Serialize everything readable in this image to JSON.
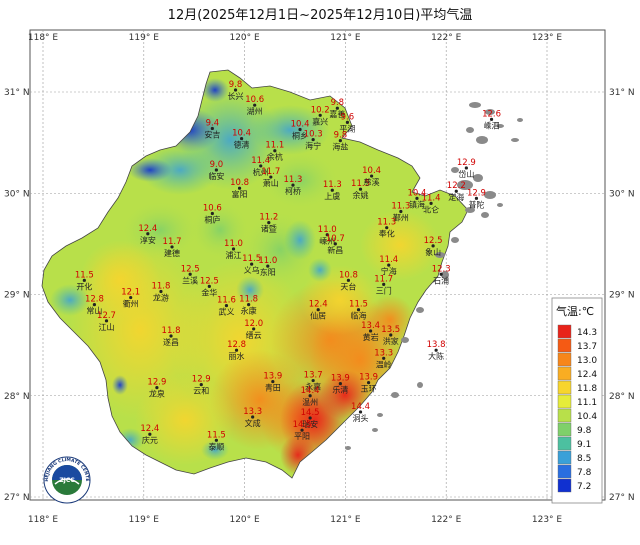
{
  "title": "12月(2025年12月1日~2025年12月10日)平均气温",
  "lon_labels": [
    "118° E",
    "119° E",
    "120° E",
    "121° E",
    "122° E",
    "123° E"
  ],
  "lat_labels": [
    "31° N",
    "30° N",
    "29° N",
    "28° N",
    "27° N"
  ],
  "legend": {
    "title": "气温:℃",
    "values": [
      "14.3",
      "13.7",
      "13.0",
      "12.4",
      "11.8",
      "11.1",
      "10.4",
      "9.8",
      "9.1",
      "8.5",
      "7.8",
      "7.2"
    ],
    "colors": [
      "#e8231a",
      "#f55a14",
      "#f7861a",
      "#f9ad22",
      "#f7d52d",
      "#e6ec3a",
      "#b8e04a",
      "#7fd06a",
      "#4cc0a0",
      "#3aa0d8",
      "#2a6ee0",
      "#1030d0"
    ]
  },
  "logo_text": "ZHEJIANG CLIMATE CENTER",
  "logo_code": "ZJCC",
  "cities": [
    {
      "name": "嵊泗",
      "value": "12.6",
      "lon": 122.45,
      "lat": 30.73
    },
    {
      "name": "岱山",
      "value": "12.9",
      "lon": 122.2,
      "lat": 30.25
    },
    {
      "name": "湖州",
      "value": "10.6",
      "lon": 120.1,
      "lat": 30.87
    },
    {
      "name": "嘉兴",
      "value": "10.2",
      "lon": 120.75,
      "lat": 30.77
    },
    {
      "name": "嘉善",
      "value": "9.8",
      "lon": 120.92,
      "lat": 30.84
    },
    {
      "name": "平湖",
      "value": "9.6",
      "lon": 121.02,
      "lat": 30.7
    },
    {
      "name": "长兴",
      "value": "9.8",
      "lon": 119.91,
      "lat": 31.02
    },
    {
      "name": "安吉",
      "value": "9.4",
      "lon": 119.68,
      "lat": 30.64
    },
    {
      "name": "德清",
      "value": "10.4",
      "lon": 119.97,
      "lat": 30.54
    },
    {
      "name": "桐乡",
      "value": "10.4",
      "lon": 120.55,
      "lat": 30.63
    },
    {
      "name": "海盐",
      "value": "9.8",
      "lon": 120.95,
      "lat": 30.52
    },
    {
      "name": "海宁",
      "value": "10.3",
      "lon": 120.68,
      "lat": 30.53
    },
    {
      "name": "临安",
      "value": "9.0",
      "lon": 119.72,
      "lat": 30.23
    },
    {
      "name": "杭州",
      "value": "11.4",
      "lon": 120.16,
      "lat": 30.27
    },
    {
      "name": "余杭",
      "value": "11.1",
      "lon": 120.3,
      "lat": 30.42
    },
    {
      "name": "萧山",
      "value": "11.7",
      "lon": 120.26,
      "lat": 30.16
    },
    {
      "name": "富阳",
      "value": "10.8",
      "lon": 119.95,
      "lat": 30.05
    },
    {
      "name": "柯桥",
      "value": "11.3",
      "lon": 120.48,
      "lat": 30.08
    },
    {
      "name": "上虞",
      "value": "11.3",
      "lon": 120.87,
      "lat": 30.03
    },
    {
      "name": "余姚",
      "value": "11.5",
      "lon": 121.15,
      "lat": 30.04
    },
    {
      "name": "慈溪",
      "value": "10.4",
      "lon": 121.26,
      "lat": 30.17
    },
    {
      "name": "镇海",
      "value": "10.4",
      "lon": 121.71,
      "lat": 29.95
    },
    {
      "name": "北仑",
      "value": "11.4",
      "lon": 121.85,
      "lat": 29.9
    },
    {
      "name": "定海",
      "value": "12.2",
      "lon": 122.1,
      "lat": 30.02
    },
    {
      "name": "普陀",
      "value": "12.9",
      "lon": 122.3,
      "lat": 29.95
    },
    {
      "name": "鄞州",
      "value": "11.3",
      "lon": 121.55,
      "lat": 29.82
    },
    {
      "name": "奉化",
      "value": "11.3",
      "lon": 121.41,
      "lat": 29.66
    },
    {
      "name": "桐庐",
      "value": "10.6",
      "lon": 119.68,
      "lat": 29.8
    },
    {
      "name": "诸暨",
      "value": "11.2",
      "lon": 120.24,
      "lat": 29.71
    },
    {
      "name": "嵊州",
      "value": "11.0",
      "lon": 120.82,
      "lat": 29.59
    },
    {
      "name": "新昌",
      "value": "10.7",
      "lon": 120.9,
      "lat": 29.5
    },
    {
      "name": "象山",
      "value": "12.5",
      "lon": 121.87,
      "lat": 29.48
    },
    {
      "name": "宁海",
      "value": "11.4",
      "lon": 121.43,
      "lat": 29.29
    },
    {
      "name": "淳安",
      "value": "12.4",
      "lon": 119.04,
      "lat": 29.6
    },
    {
      "name": "建德",
      "value": "11.7",
      "lon": 119.28,
      "lat": 29.47
    },
    {
      "name": "浦江",
      "value": "11.0",
      "lon": 119.89,
      "lat": 29.45
    },
    {
      "name": "义乌",
      "value": "11.5",
      "lon": 120.07,
      "lat": 29.3
    },
    {
      "name": "东阳",
      "value": "11.0",
      "lon": 120.23,
      "lat": 29.28
    },
    {
      "name": "兰溪",
      "value": "12.5",
      "lon": 119.46,
      "lat": 29.2
    },
    {
      "name": "金华",
      "value": "12.5",
      "lon": 119.65,
      "lat": 29.08
    },
    {
      "name": "三门",
      "value": "11.7",
      "lon": 121.38,
      "lat": 29.1
    },
    {
      "name": "石浦",
      "value": "12.3",
      "lon": 121.95,
      "lat": 29.2
    },
    {
      "name": "天台",
      "value": "10.8",
      "lon": 121.03,
      "lat": 29.14
    },
    {
      "name": "开化",
      "value": "11.5",
      "lon": 118.41,
      "lat": 29.14
    },
    {
      "name": "常山",
      "value": "12.8",
      "lon": 118.51,
      "lat": 28.9
    },
    {
      "name": "衢州",
      "value": "12.1",
      "lon": 118.87,
      "lat": 28.97
    },
    {
      "name": "龙游",
      "value": "11.8",
      "lon": 119.17,
      "lat": 29.03
    },
    {
      "name": "武义",
      "value": "11.6",
      "lon": 119.82,
      "lat": 28.89
    },
    {
      "name": "永康",
      "value": "11.8",
      "lon": 120.04,
      "lat": 28.9
    },
    {
      "name": "仙居",
      "value": "12.4",
      "lon": 120.73,
      "lat": 28.85
    },
    {
      "name": "临海",
      "value": "11.5",
      "lon": 121.13,
      "lat": 28.85
    },
    {
      "name": "江山",
      "value": "12.7",
      "lon": 118.63,
      "lat": 28.74
    },
    {
      "name": "缙云",
      "value": "12.0",
      "lon": 120.09,
      "lat": 28.66
    },
    {
      "name": "遂昌",
      "value": "11.8",
      "lon": 119.27,
      "lat": 28.59
    },
    {
      "name": "大陈",
      "value": "13.8",
      "lon": 121.9,
      "lat": 28.45
    },
    {
      "name": "洪家",
      "value": "13.5",
      "lon": 121.45,
      "lat": 28.6
    },
    {
      "name": "黄岩",
      "value": "13.4",
      "lon": 121.25,
      "lat": 28.64
    },
    {
      "name": "温岭",
      "value": "13.3",
      "lon": 121.38,
      "lat": 28.37
    },
    {
      "name": "丽水",
      "value": "12.8",
      "lon": 119.92,
      "lat": 28.45
    },
    {
      "name": "青田",
      "value": "13.9",
      "lon": 120.28,
      "lat": 28.14
    },
    {
      "name": "永嘉",
      "value": "13.7",
      "lon": 120.68,
      "lat": 28.15
    },
    {
      "name": "乐清",
      "value": "13.9",
      "lon": 120.95,
      "lat": 28.12
    },
    {
      "name": "玉环",
      "value": "13.9",
      "lon": 121.23,
      "lat": 28.13
    },
    {
      "name": "龙泉",
      "value": "12.9",
      "lon": 119.13,
      "lat": 28.08
    },
    {
      "name": "云和",
      "value": "12.9",
      "lon": 119.57,
      "lat": 28.11
    },
    {
      "name": "温州",
      "value": "14.4",
      "lon": 120.65,
      "lat": 28.0
    },
    {
      "name": "洞头",
      "value": "14.4",
      "lon": 121.15,
      "lat": 27.84
    },
    {
      "name": "文成",
      "value": "13.3",
      "lon": 120.08,
      "lat": 27.79
    },
    {
      "name": "瑞安",
      "value": "14.5",
      "lon": 120.65,
      "lat": 27.78
    },
    {
      "name": "平阳",
      "value": "14.5",
      "lon": 120.57,
      "lat": 27.66
    },
    {
      "name": "庆元",
      "value": "12.4",
      "lon": 119.06,
      "lat": 27.62
    },
    {
      "name": "泰顺",
      "value": "11.5",
      "lon": 119.72,
      "lat": 27.56
    }
  ]
}
